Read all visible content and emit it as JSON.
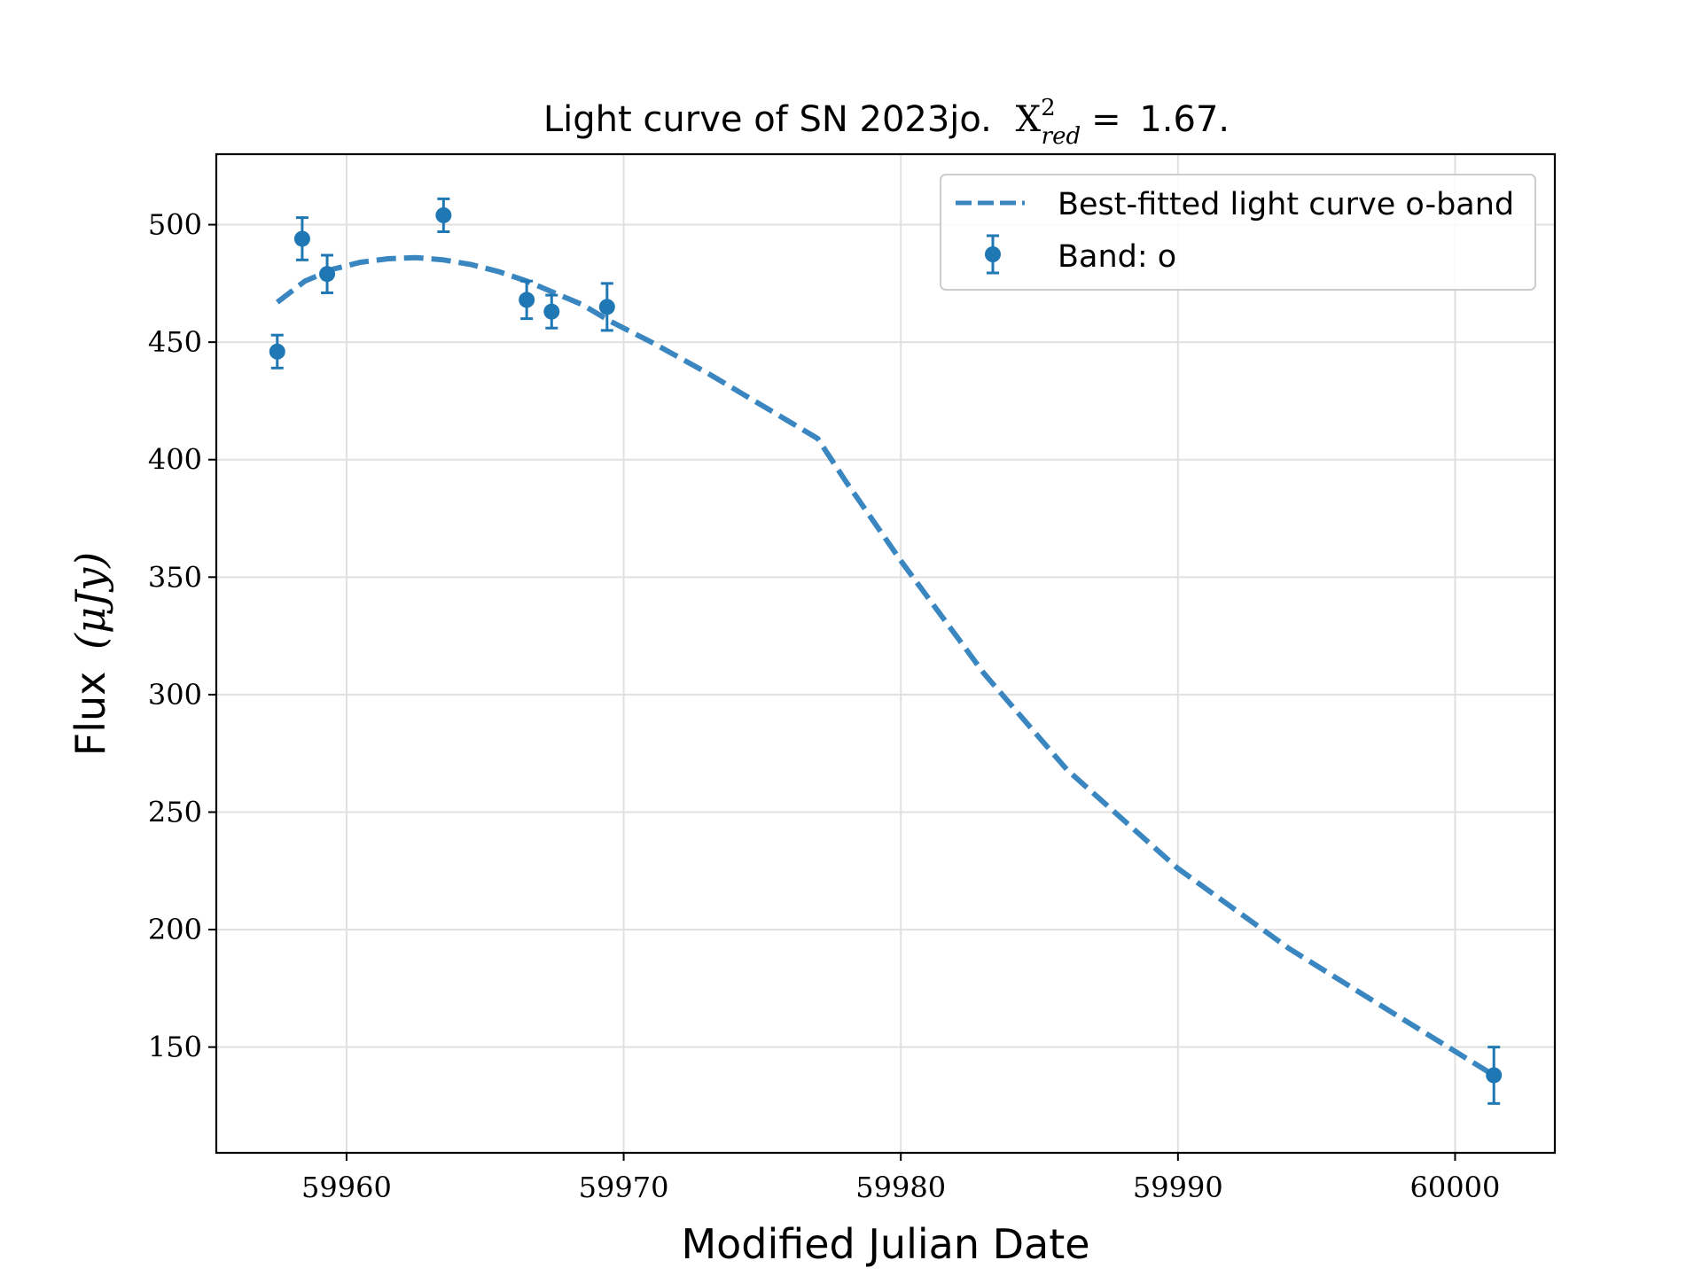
{
  "chart_data": {
    "type": "scatter",
    "title": "Light curve of SN 2023jo.",
    "title_stat": {
      "symbol": "X",
      "superscript": "2",
      "subscript": "red",
      "equals": "=",
      "value": "1.67."
    },
    "xlabel": "Modified Julian Date",
    "ylabel": "Flux",
    "ylabel_unit": "(μJy)",
    "xlim": [
      59955.3,
      60003.6
    ],
    "ylim": [
      105,
      530
    ],
    "xticks": [
      59960,
      59970,
      59980,
      59990,
      60000
    ],
    "xtick_labels": [
      "59960",
      "59970",
      "59980",
      "59990",
      "60000"
    ],
    "yticks": [
      150,
      200,
      250,
      300,
      350,
      400,
      450,
      500
    ],
    "ytick_labels": [
      "150",
      "200",
      "250",
      "300",
      "350",
      "400",
      "450",
      "500"
    ],
    "grid": true,
    "legend_position": "top-right",
    "colors": {
      "series": "#1f77b4",
      "fit": "#3a86c0"
    },
    "series": [
      {
        "name": "Band: o",
        "kind": "errorbar",
        "x": [
          59957.5,
          59958.4,
          59959.3,
          59963.5,
          59966.5,
          59967.4,
          59969.4,
          60001.4
        ],
        "y": [
          446,
          494,
          479,
          504,
          468,
          463,
          465,
          138
        ],
        "yerr": [
          7,
          9,
          8,
          7,
          8,
          7,
          10,
          12
        ]
      },
      {
        "name": "Best-fitted light curve o-band",
        "kind": "line",
        "style": "dashed",
        "x": [
          59957.5,
          59958.5,
          59959.5,
          59960.5,
          59961.5,
          59962.5,
          59963.5,
          59964.5,
          59965.5,
          59966.5,
          59967.5,
          59968.5,
          59969.5,
          59971,
          59973,
          59975,
          59977,
          59978,
          59980,
          59983,
          59986,
          59990,
          59994,
          59997,
          60001.4
        ],
        "y": [
          467,
          476,
          481,
          484,
          485.5,
          486,
          485,
          483,
          480,
          476,
          471,
          466,
          459,
          450,
          437,
          423,
          409,
          391,
          357,
          309,
          268,
          226,
          192,
          170,
          138
        ]
      }
    ]
  }
}
